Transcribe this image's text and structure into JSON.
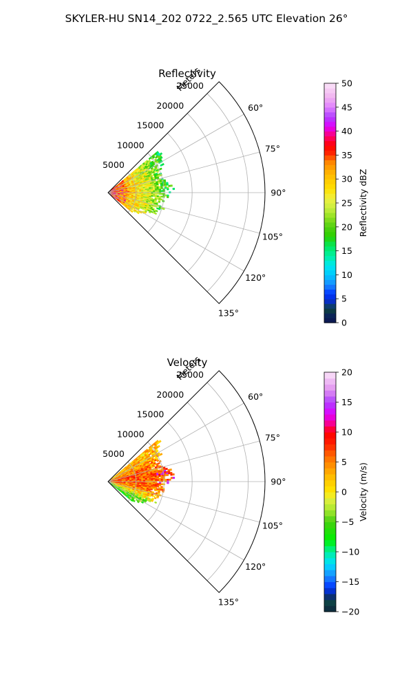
{
  "figure": {
    "suptitle": "SKYLER-HU  SN14_202  0722_2.565 UTC Elevation 26°"
  },
  "colors": {
    "grid": "#b0b0b0",
    "background": "#ffffff",
    "reflectivity_ramp": [
      {
        "v": 0,
        "c": "#0c1450"
      },
      {
        "v": 2,
        "c": "#0b2a5a"
      },
      {
        "v": 3,
        "c": "#0f4a30"
      },
      {
        "v": 4,
        "c": "#0b2fb0"
      },
      {
        "v": 6,
        "c": "#0033ff"
      },
      {
        "v": 8,
        "c": "#1a8cff"
      },
      {
        "v": 10,
        "c": "#00c8ff"
      },
      {
        "v": 12,
        "c": "#00e8f0"
      },
      {
        "v": 14,
        "c": "#00f0a0"
      },
      {
        "v": 16,
        "c": "#00e860"
      },
      {
        "v": 18,
        "c": "#2ad000"
      },
      {
        "v": 20,
        "c": "#50d010"
      },
      {
        "v": 22,
        "c": "#8fe020"
      },
      {
        "v": 24,
        "c": "#c9ef40"
      },
      {
        "v": 26,
        "c": "#f0f040"
      },
      {
        "v": 28,
        "c": "#ffe000"
      },
      {
        "v": 30,
        "c": "#ffc800"
      },
      {
        "v": 32,
        "c": "#ffa800"
      },
      {
        "v": 34,
        "c": "#ff7a00"
      },
      {
        "v": 35,
        "c": "#ff3000"
      },
      {
        "v": 37,
        "c": "#ff0000"
      },
      {
        "v": 39,
        "c": "#ff0070"
      },
      {
        "v": 41,
        "c": "#e000ff"
      },
      {
        "v": 43,
        "c": "#b040ff"
      },
      {
        "v": 45,
        "c": "#e080ff"
      },
      {
        "v": 47,
        "c": "#f0b0f0"
      },
      {
        "v": 50,
        "c": "#fbe4f8"
      }
    ],
    "velocity_ramp": [
      {
        "v": -20,
        "c": "#0c1450"
      },
      {
        "v": -19,
        "c": "#0f4a30"
      },
      {
        "v": -17.5,
        "c": "#0b3070"
      },
      {
        "v": -16,
        "c": "#0033ff"
      },
      {
        "v": -14,
        "c": "#1a8cff"
      },
      {
        "v": -12,
        "c": "#00e0ff"
      },
      {
        "v": -10,
        "c": "#00f0a0"
      },
      {
        "v": -8,
        "c": "#00f000"
      },
      {
        "v": -5,
        "c": "#44d010"
      },
      {
        "v": -3,
        "c": "#a8e830"
      },
      {
        "v": -1,
        "c": "#e8f040"
      },
      {
        "v": 0,
        "c": "#ffe800"
      },
      {
        "v": 2,
        "c": "#ffc800"
      },
      {
        "v": 4,
        "c": "#ff9a00"
      },
      {
        "v": 6,
        "c": "#ff6a00"
      },
      {
        "v": 8,
        "c": "#ff2000"
      },
      {
        "v": 10,
        "c": "#ff0000"
      },
      {
        "v": 11,
        "c": "#ff0070"
      },
      {
        "v": 13,
        "c": "#e000ff"
      },
      {
        "v": 15,
        "c": "#b040ff"
      },
      {
        "v": 17,
        "c": "#e090f0"
      },
      {
        "v": 20,
        "c": "#fbe4f8"
      }
    ]
  },
  "chart_data": [
    {
      "type": "heatmap",
      "title": "Reflectivity",
      "radial_axis_label": "Meters",
      "radial_ticks": [
        5000,
        10000,
        15000,
        20000,
        25000
      ],
      "radial_tick_labels": [
        "5000",
        "10000",
        "15000",
        "20000",
        "25000"
      ],
      "r_max": 28000,
      "azimuth_range": [
        45,
        135
      ],
      "azimuth_ticks": [
        60,
        75,
        90,
        105,
        120,
        135
      ],
      "azimuth_tick_labels": [
        "60°",
        "75°",
        "90°",
        "105°",
        "120°",
        "135°"
      ],
      "grid": true,
      "colorbar": {
        "label": "Reflectivity dBZ",
        "range": [
          0,
          50
        ],
        "ticks": [
          0,
          5,
          10,
          15,
          20,
          25,
          30,
          35,
          40,
          45,
          50
        ],
        "tick_labels": [
          "0",
          "5",
          "10",
          "15",
          "20",
          "25",
          "30",
          "35",
          "40",
          "45",
          "50"
        ],
        "levels": 50
      },
      "field": {
        "echo_extent_m": [
          [
            52,
            11800
          ],
          [
            56,
            11200
          ],
          [
            60,
            10600
          ],
          [
            64,
            10200
          ],
          [
            68,
            9900
          ],
          [
            72,
            9700
          ],
          [
            76,
            10500
          ],
          [
            80,
            11300
          ],
          [
            84,
            11500
          ],
          [
            88,
            11200
          ],
          [
            92,
            10700
          ],
          [
            96,
            10000
          ],
          [
            100,
            9500
          ],
          [
            104,
            9600
          ],
          [
            108,
            10000
          ],
          [
            112,
            9300
          ],
          [
            116,
            8200
          ],
          [
            120,
            7200
          ],
          [
            124,
            6400
          ],
          [
            128,
            5600
          ]
        ],
        "value_profile_by_range_m": [
          [
            0,
            36
          ],
          [
            2500,
            32
          ],
          [
            5000,
            28
          ],
          [
            7500,
            24
          ],
          [
            10000,
            19
          ],
          [
            12500,
            16
          ]
        ]
      }
    },
    {
      "type": "heatmap",
      "title": "Velocity",
      "radial_axis_label": "Meters",
      "radial_ticks": [
        5000,
        10000,
        15000,
        20000,
        25000
      ],
      "radial_tick_labels": [
        "5000",
        "10000",
        "15000",
        "20000",
        "25000"
      ],
      "r_max": 28000,
      "azimuth_range": [
        45,
        135
      ],
      "azimuth_ticks": [
        60,
        75,
        90,
        105,
        120,
        135
      ],
      "azimuth_tick_labels": [
        "60°",
        "75°",
        "90°",
        "105°",
        "120°",
        "135°"
      ],
      "grid": true,
      "colorbar": {
        "label": "Velocity (m/s)",
        "range": [
          -20,
          20
        ],
        "ticks": [
          -20,
          -15,
          -10,
          -5,
          0,
          5,
          10,
          15,
          20
        ],
        "tick_labels": [
          "−20",
          "−15",
          "−10",
          "−5",
          "0",
          "5",
          "10",
          "15",
          "20"
        ],
        "levels": 40
      },
      "field": {
        "echo_extent_m": [
          [
            52,
            11800
          ],
          [
            56,
            11200
          ],
          [
            60,
            10600
          ],
          [
            64,
            10200
          ],
          [
            68,
            9900
          ],
          [
            72,
            9700
          ],
          [
            76,
            10500
          ],
          [
            80,
            11300
          ],
          [
            84,
            11500
          ],
          [
            88,
            11200
          ],
          [
            92,
            10700
          ],
          [
            96,
            10000
          ],
          [
            100,
            9500
          ],
          [
            104,
            9600
          ],
          [
            108,
            10000
          ],
          [
            112,
            9300
          ],
          [
            116,
            8200
          ],
          [
            120,
            7200
          ],
          [
            124,
            6400
          ],
          [
            128,
            5600
          ]
        ],
        "value_by_azimuth_deg": [
          [
            50,
            2
          ],
          [
            60,
            3
          ],
          [
            70,
            5
          ],
          [
            80,
            7
          ],
          [
            90,
            6
          ],
          [
            100,
            5
          ],
          [
            110,
            1
          ],
          [
            118,
            -4
          ],
          [
            128,
            -7
          ]
        ]
      }
    }
  ]
}
